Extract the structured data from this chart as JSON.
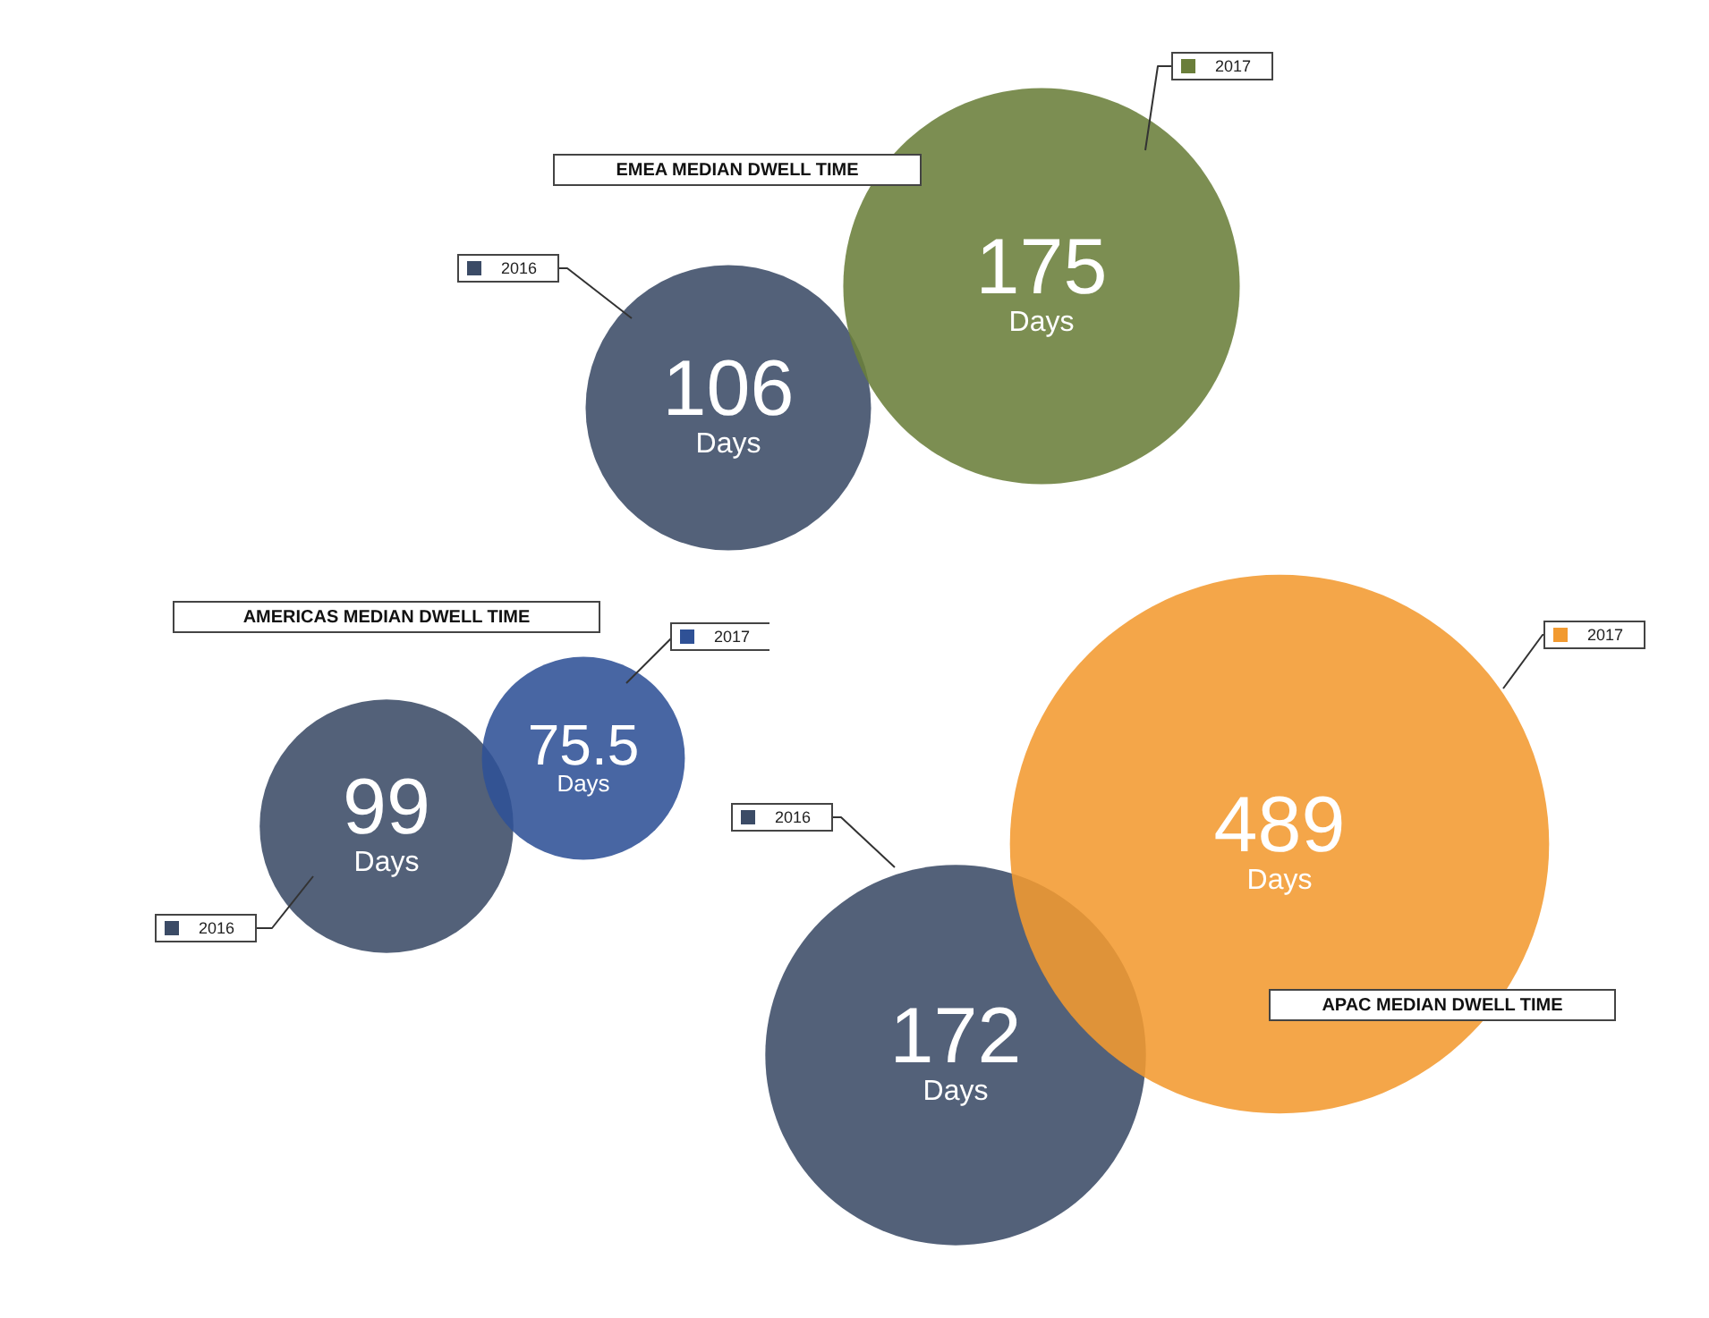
{
  "chart_data": [
    {
      "type": "other",
      "title": "EMEA MEDIAN DWELL TIME",
      "categories": [
        "2016",
        "2017"
      ],
      "values": [
        106,
        175
      ],
      "value_labels": [
        "106 Days",
        "175 Days"
      ],
      "colors": [
        "#3b4b66",
        "#6a7e3a"
      ]
    },
    {
      "type": "other",
      "title": "AMERICAS MEDIAN DWELL TIME",
      "categories": [
        "2016",
        "2017"
      ],
      "values": [
        99,
        75.5
      ],
      "value_labels": [
        "99 Days",
        "75.5 Days"
      ],
      "colors": [
        "#3b4b66",
        "#2f5196"
      ]
    },
    {
      "type": "other",
      "title": "APAC MEDIAN DWELL TIME",
      "categories": [
        "2016",
        "2017"
      ],
      "values": [
        172,
        489
      ],
      "value_labels": [
        "172 Days",
        "489 Days"
      ],
      "colors": [
        "#3b4b66",
        "#f29a30"
      ]
    }
  ]
}
